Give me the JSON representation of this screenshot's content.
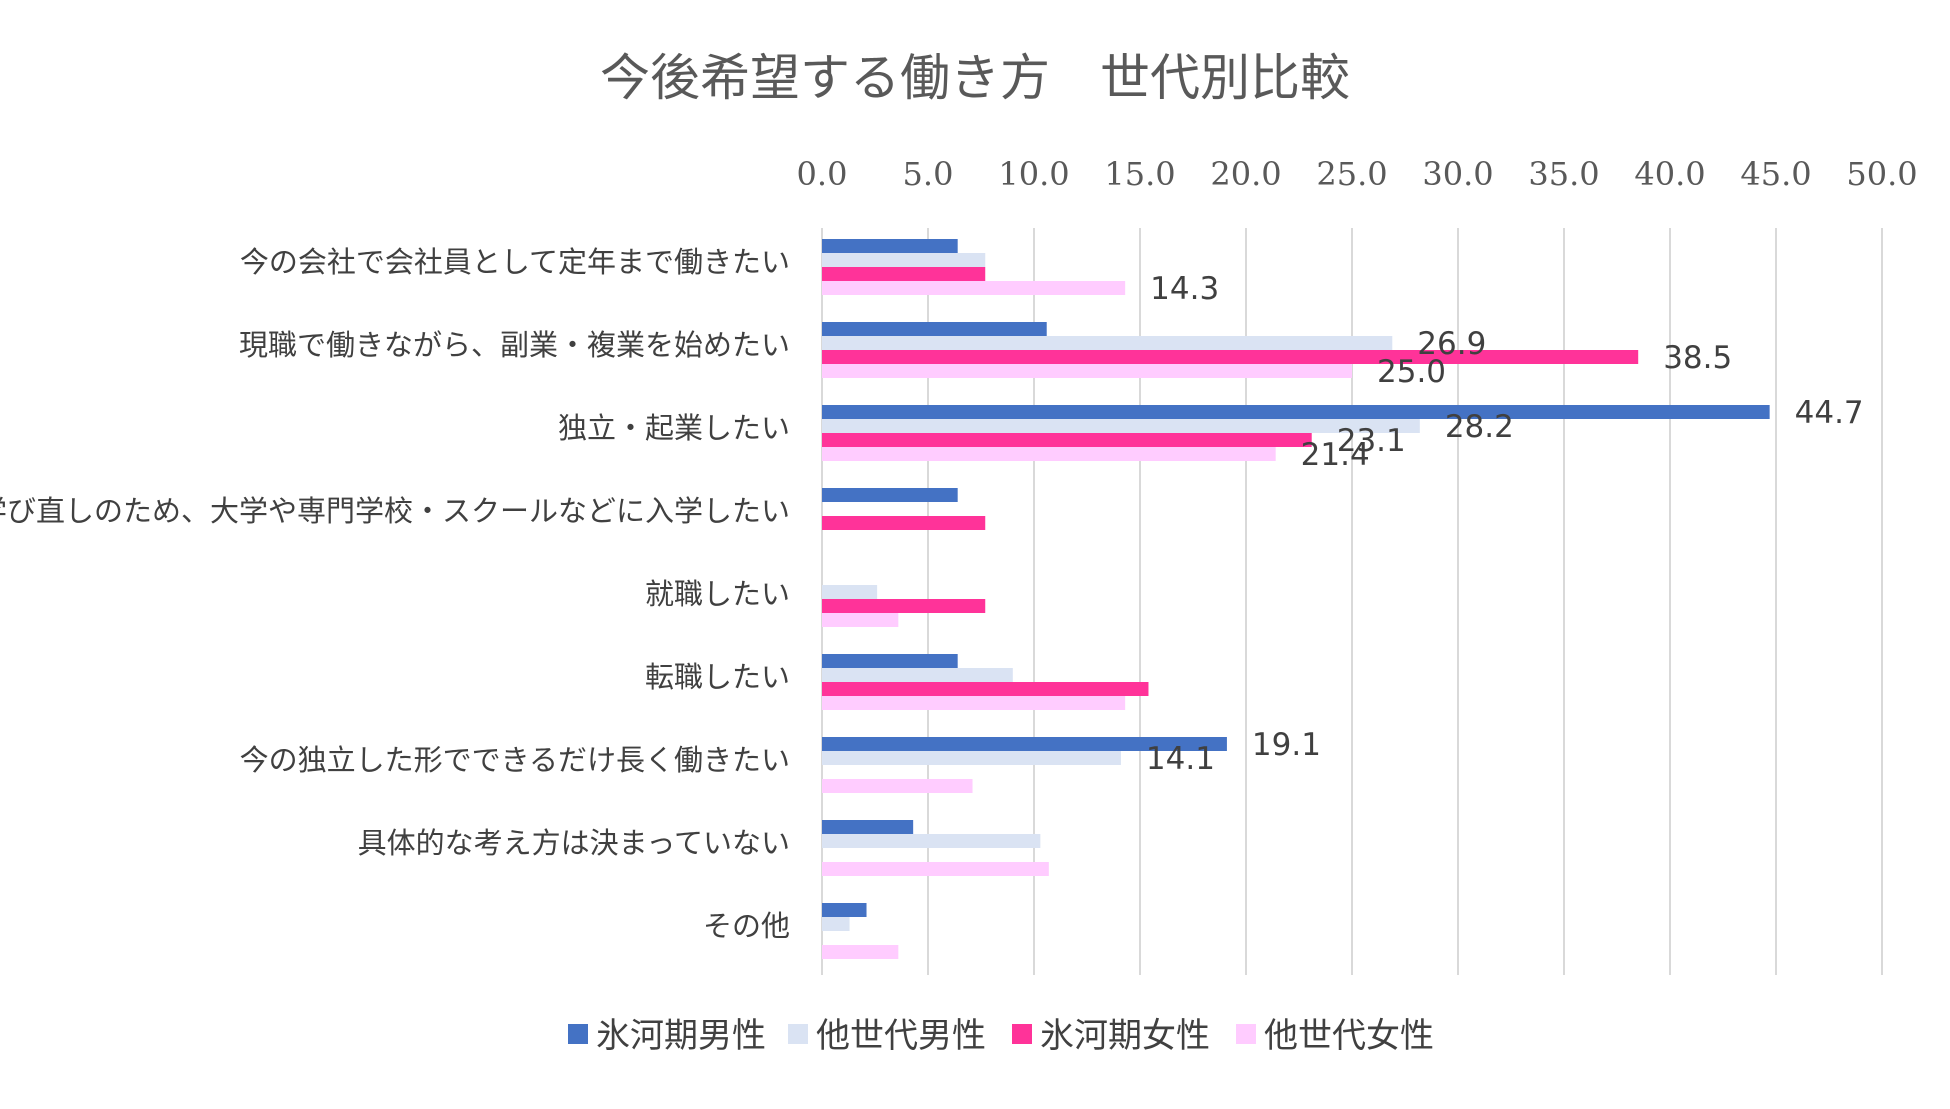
{
  "chart_data": {
    "type": "bar",
    "orientation": "horizontal",
    "title": "今後希望する働き方　世代別比較",
    "xlabel": "",
    "ylabel": "",
    "xlim": [
      0,
      50
    ],
    "ticks": [
      "0.0",
      "5.0",
      "10.0",
      "15.0",
      "20.0",
      "25.0",
      "30.0",
      "35.0",
      "40.0",
      "45.0",
      "50.0"
    ],
    "tick_values": [
      0,
      5,
      10,
      15,
      20,
      25,
      30,
      35,
      40,
      45,
      50
    ],
    "axis_position": "top",
    "grid": true,
    "legend_position": "bottom",
    "categories": [
      "今の会社で会社員として定年まで働きたい",
      "現職で働きながら、副業・複業を始めたい",
      "独立・起業したい",
      "学び直しのため、大学や専門学校・スクールなどに入学したい",
      "就職したい",
      "転職したい",
      "今の独立した形でできるだけ長く働きたい",
      "具体的な考え方は決まっていない",
      "その他"
    ],
    "series": [
      {
        "name": "氷河期男性",
        "color": "#4472C4",
        "values": [
          6.4,
          10.6,
          44.7,
          6.4,
          0.0,
          6.4,
          19.1,
          4.3,
          2.1
        ],
        "labels": [
          "",
          "",
          "44.7",
          "",
          "",
          "",
          "19.1",
          "",
          ""
        ]
      },
      {
        "name": "他世代男性",
        "color": "#DAE3F3",
        "values": [
          7.7,
          26.9,
          28.2,
          0.0,
          2.6,
          9.0,
          14.1,
          10.3,
          1.3
        ],
        "labels": [
          "",
          "26.9",
          "28.2",
          "",
          "",
          "",
          "14.1",
          "",
          ""
        ]
      },
      {
        "name": "氷河期女性",
        "color": "#FF3399",
        "values": [
          7.7,
          38.5,
          23.1,
          7.7,
          7.7,
          15.4,
          0.0,
          0.0,
          0.0
        ],
        "labels": [
          "",
          "38.5",
          "23.1",
          "",
          "",
          "",
          "",
          "",
          ""
        ]
      },
      {
        "name": "他世代女性",
        "color": "#FFCCFF",
        "values": [
          14.3,
          25.0,
          21.4,
          0.0,
          3.6,
          14.3,
          7.1,
          10.7,
          3.6
        ],
        "labels": [
          "14.3",
          "25.0",
          "21.4",
          "",
          "",
          "",
          "",
          "",
          ""
        ]
      }
    ]
  }
}
